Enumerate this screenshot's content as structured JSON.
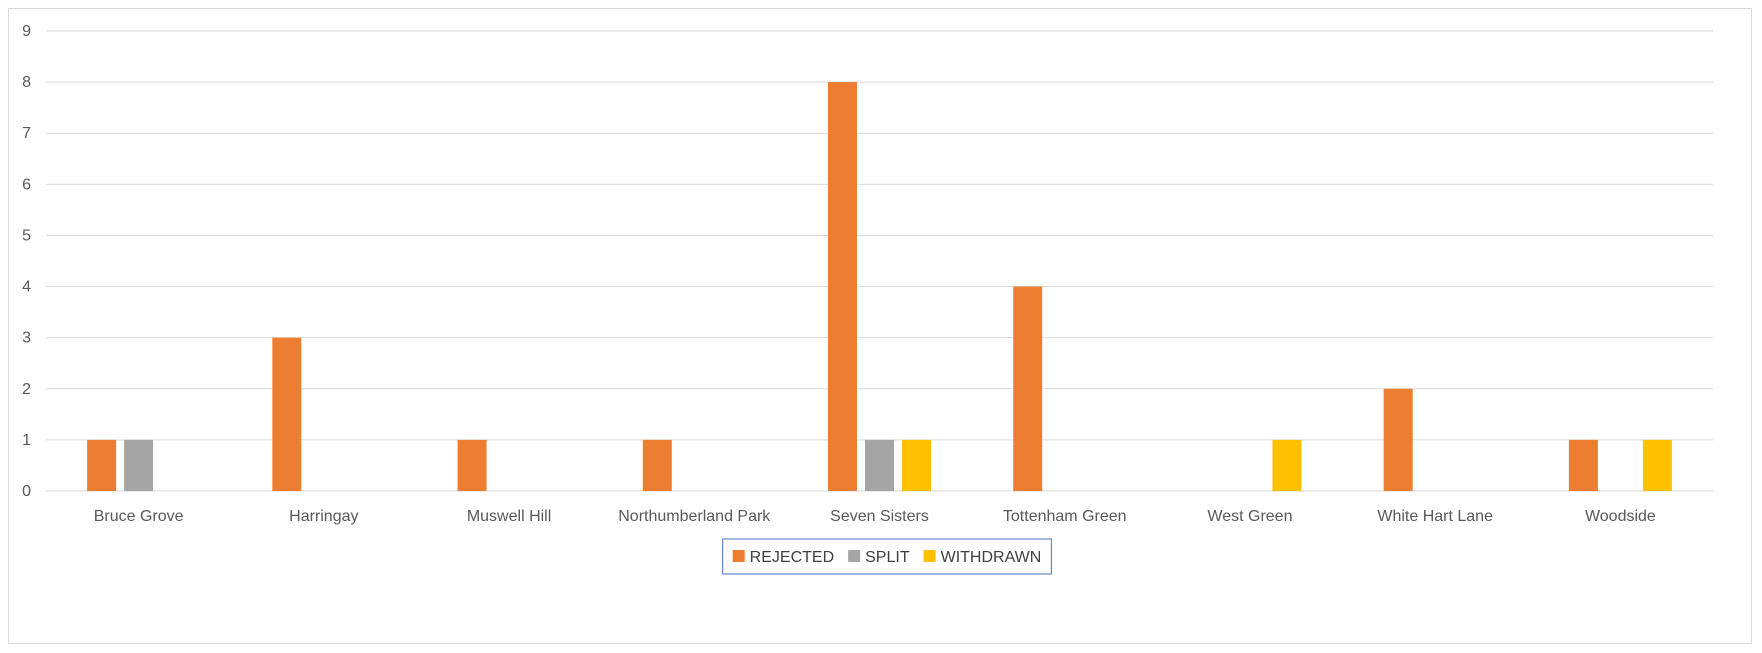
{
  "chart_data": {
    "type": "bar",
    "title": "",
    "xlabel": "",
    "ylabel": "",
    "categories": [
      "Bruce Grove",
      "Harringay",
      "Muswell Hill",
      "Northumberland Park",
      "Seven Sisters",
      "Tottenham Green",
      "West Green",
      "White Hart Lane",
      "Woodside"
    ],
    "series": [
      {
        "name": "REJECTED",
        "color": "#ED7D31",
        "values": [
          1,
          3,
          1,
          1,
          8,
          4,
          0,
          2,
          1
        ]
      },
      {
        "name": "SPLIT",
        "color": "#A5A5A5",
        "values": [
          1,
          0,
          0,
          0,
          1,
          0,
          0,
          0,
          0
        ]
      },
      {
        "name": "WITHDRAWN",
        "color": "#FFC000",
        "values": [
          0,
          0,
          0,
          0,
          1,
          0,
          1,
          0,
          1
        ]
      }
    ],
    "ylim": [
      0,
      9
    ],
    "yticks": [
      "0",
      "1",
      "2",
      "3",
      "4",
      "5",
      "6",
      "7",
      "8",
      "9"
    ],
    "grid": true,
    "legend_position": "bottom"
  }
}
